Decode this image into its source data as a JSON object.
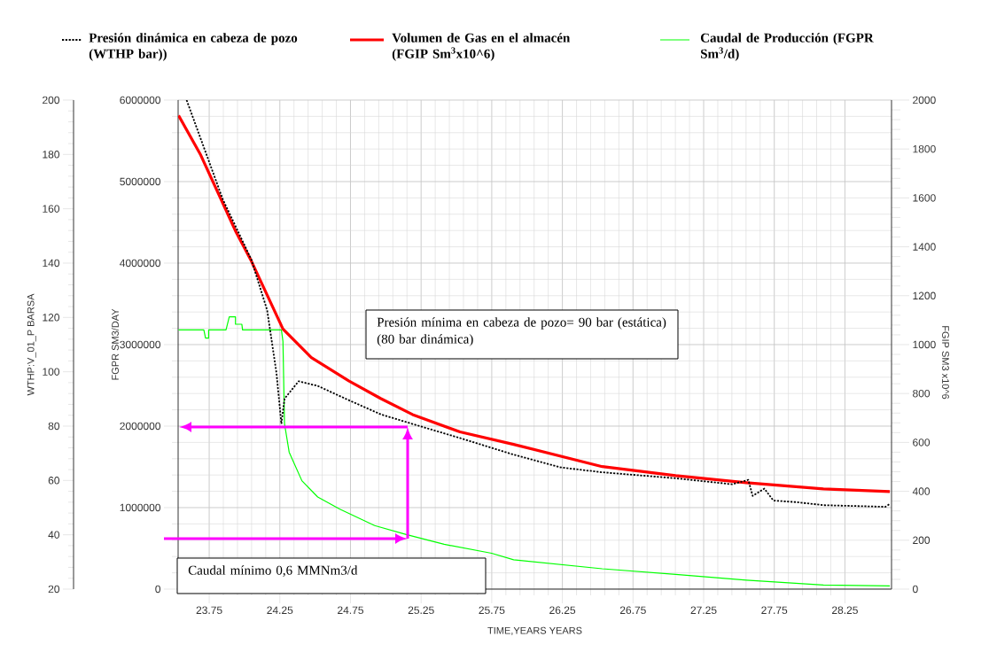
{
  "chart_data": {
    "type": "line",
    "xlabel": "TIME,YEARS   YEARS",
    "ylabel": "WTHP:V_01_P   BARSA",
    "y2label": "FGIP   SM3   x10^6",
    "y3label": "FGPR   SM3/DAY",
    "xlim": [
      23.53,
      28.58
    ],
    "xticks": [
      23.75,
      24.25,
      24.75,
      25.25,
      25.75,
      26.25,
      26.75,
      27.25,
      27.75,
      28.25
    ],
    "ylim": [
      20,
      200
    ],
    "yticks": [
      20,
      40,
      60,
      80,
      100,
      120,
      140,
      160,
      180,
      200
    ],
    "y2lim": [
      0,
      2000
    ],
    "y2ticks": [
      0,
      200,
      400,
      600,
      800,
      1000,
      1200,
      1400,
      1600,
      1800,
      2000
    ],
    "y3lim": [
      0,
      6000000
    ],
    "y3ticks": [
      0,
      1000000,
      2000000,
      3000000,
      4000000,
      5000000,
      6000000
    ],
    "grid": true,
    "legend": "top",
    "series": [
      {
        "name": "Presión dinámica en cabeza de pozo (WTHP bar))",
        "color": "#000000",
        "line_style": "dotted",
        "x": [
          23.59,
          23.846,
          24.048,
          24.16,
          24.226,
          24.261,
          24.283,
          24.383,
          24.518,
          24.74,
          24.966,
          25.189,
          25.525,
          25.905,
          26.239,
          26.532,
          27.052,
          27.451,
          27.566,
          27.597,
          27.68,
          27.743,
          27.91,
          28.098,
          28.537,
          28.57
        ],
        "values": [
          200,
          163.5,
          141.3,
          122.7,
          99.6,
          80.8,
          90.1,
          96.5,
          94.8,
          89.5,
          84.3,
          80.8,
          75.6,
          69.5,
          64.8,
          63.0,
          60.8,
          58.6,
          60.2,
          54.3,
          57.0,
          52.6,
          52.0,
          50.9,
          50.3,
          51.4
        ]
      },
      {
        "name": "Volumen de Gas en el almacén  (FGIP Sm$^{3}$x10^6)",
        "color": "#ff0000",
        "line_style": "solid",
        "axis": "y2",
        "x": [
          23.533,
          23.69,
          23.936,
          24.048,
          24.272,
          24.473,
          24.74,
          24.966,
          25.189,
          25.525,
          25.905,
          26.532,
          27.052,
          27.553,
          28.098,
          28.568
        ],
        "values": [
          1937,
          1775,
          1465,
          1342,
          1064,
          947,
          851,
          779,
          714,
          643,
          592,
          501,
          464,
          435,
          410,
          399
        ]
      },
      {
        "name": "Caudal de Producción (FGPR Sm$^{3}$/d)",
        "color": "#00ff00",
        "line_style": "solid",
        "axis": "y3",
        "x": [
          23.533,
          23.712,
          23.724,
          23.746,
          23.746,
          23.869,
          23.892,
          23.936,
          23.936,
          23.981,
          23.986,
          24.261,
          24.272,
          24.283,
          24.316,
          24.406,
          24.518,
          24.675,
          24.921,
          25.145,
          25.413,
          25.749,
          25.905,
          26.532,
          27.052,
          27.553,
          28.098,
          28.568
        ],
        "values": [
          3180000,
          3180000,
          3080000,
          3080000,
          3180000,
          3180000,
          3340000,
          3340000,
          3250000,
          3250000,
          3180000,
          3180000,
          3040000,
          2030000,
          1680000,
          1330000,
          1130000,
          980000,
          780000,
          670000,
          550000,
          440000,
          360000,
          250000,
          180000,
          110000,
          50000,
          40000
        ]
      }
    ],
    "annotations": [
      "Presión mínima en cabeza de pozo= 90 bar (estática) (80 bar dinámica)",
      "Caudal mínimo 0,6  MMNm3/d"
    ]
  }
}
